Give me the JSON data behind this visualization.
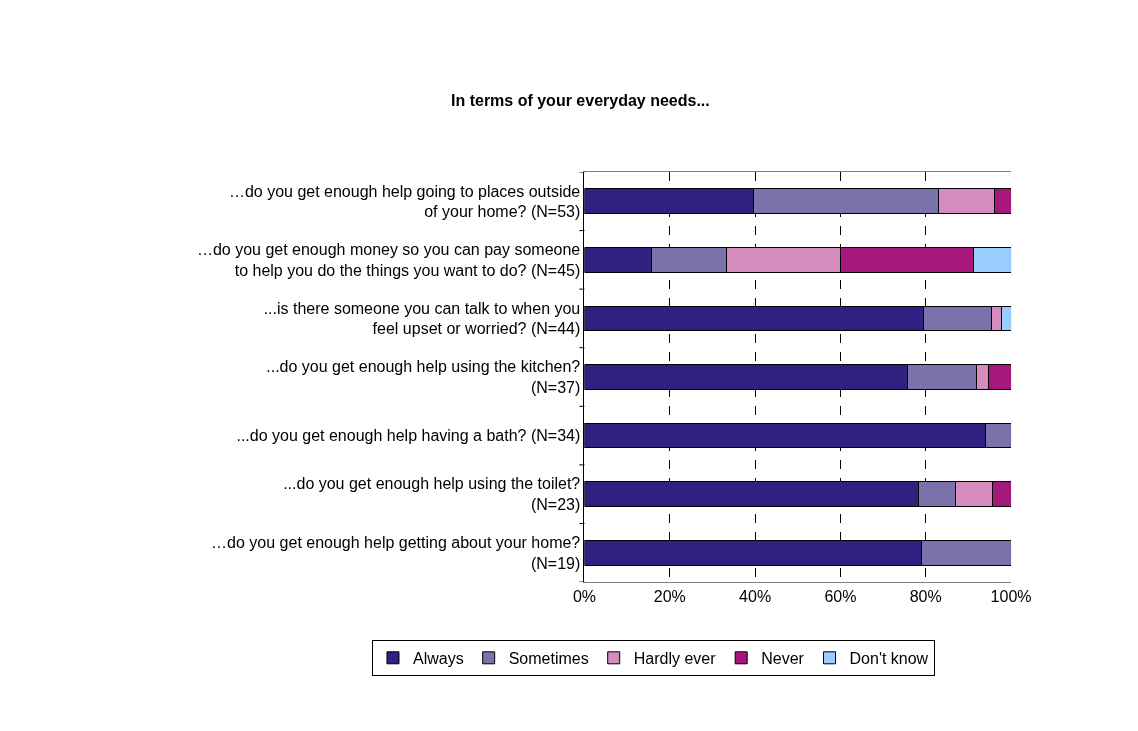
{
  "chart_data": {
    "type": "bar",
    "orientation": "horizontal",
    "stacked": true,
    "title": "In terms of your everyday needs...",
    "categories": [
      "…do you get enough help going to places outside of your home? (N=53)",
      "…do you get enough money so you can pay someone to help you do the things you want to do? (N=45)",
      "...is there someone you can talk to when you feel upset or worried? (N=44)",
      "...do you get enough help using the kitchen? (N=37)",
      "...do you get enough help having a bath? (N=34)",
      "...do you get enough help using the toilet? (N=23)",
      "…do you get enough help getting about your home? (N=19)"
    ],
    "series": [
      {
        "name": "Always",
        "color": "#302080",
        "values": [
          39.6,
          15.6,
          79.5,
          75.7,
          94.1,
          78.3,
          78.9
        ]
      },
      {
        "name": "Sometimes",
        "color": "#7b71ab",
        "values": [
          43.4,
          17.8,
          15.9,
          16.2,
          5.9,
          8.7,
          21.1
        ]
      },
      {
        "name": "Hardly ever",
        "color": "#d38cbd",
        "values": [
          13.2,
          26.7,
          2.3,
          2.7,
          null,
          8.7,
          null
        ]
      },
      {
        "name": "Never",
        "color": "#a5177a",
        "values": [
          3.8,
          31.1,
          null,
          5.4,
          null,
          4.3,
          null
        ]
      },
      {
        "name": "Don't know",
        "color": "#99ccff",
        "values": [
          null,
          8.9,
          2.3,
          null,
          null,
          null,
          null
        ]
      }
    ],
    "xlim": [
      0,
      100
    ],
    "xticks": [
      {
        "value": 0,
        "label": "0%"
      },
      {
        "value": 20,
        "label": "20%"
      },
      {
        "value": 40,
        "label": "40%"
      },
      {
        "value": 60,
        "label": "60%"
      },
      {
        "value": 80,
        "label": "80%"
      },
      {
        "value": 100,
        "label": "100%"
      }
    ],
    "grid": "x",
    "legend": "bottom"
  }
}
